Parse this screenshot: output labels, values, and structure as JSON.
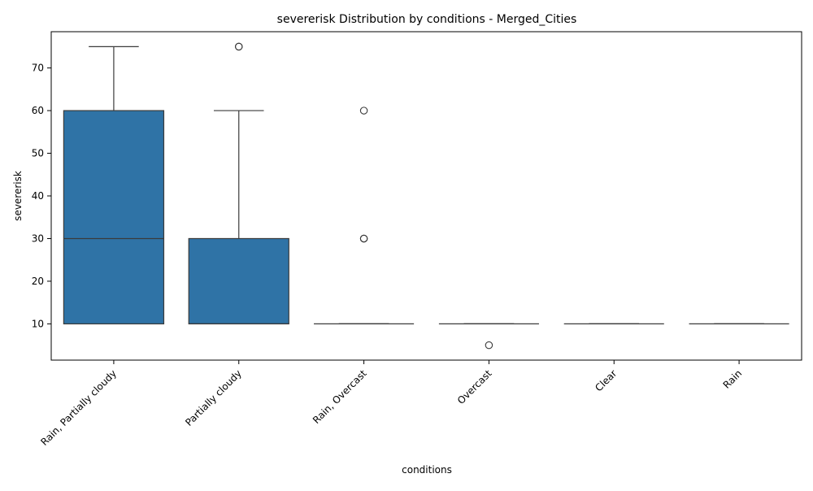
{
  "chart_data": {
    "type": "box",
    "title": "severerisk Distribution by conditions - Merged_Cities",
    "xlabel": "conditions",
    "ylabel": "severerisk",
    "ylim": [
      1.5,
      78.5
    ],
    "yticks": [
      10,
      20,
      30,
      40,
      50,
      60,
      70
    ],
    "grid": false,
    "box_color": "#2f73a6",
    "categories": [
      "Rain, Partially cloudy",
      "Partially cloudy",
      "Rain, Overcast",
      "Overcast",
      "Clear",
      "Rain"
    ],
    "boxes": [
      {
        "category": "Rain, Partially cloudy",
        "whisker_low": 10,
        "q1": 10,
        "median": 30,
        "q3": 60,
        "whisker_high": 75,
        "outliers": []
      },
      {
        "category": "Partially cloudy",
        "whisker_low": 10,
        "q1": 10,
        "median": 10,
        "q3": 30,
        "whisker_high": 60,
        "outliers": [
          75,
          75
        ]
      },
      {
        "category": "Rain, Overcast",
        "whisker_low": 10,
        "q1": 10,
        "median": 10,
        "q3": 10,
        "whisker_high": 10,
        "outliers": [
          30,
          30,
          60
        ]
      },
      {
        "category": "Overcast",
        "whisker_low": 10,
        "q1": 10,
        "median": 10,
        "q3": 10,
        "whisker_high": 10,
        "outliers": [
          5
        ]
      },
      {
        "category": "Clear",
        "whisker_low": 10,
        "q1": 10,
        "median": 10,
        "q3": 10,
        "whisker_high": 10,
        "outliers": []
      },
      {
        "category": "Rain",
        "whisker_low": 10,
        "q1": 10,
        "median": 10,
        "q3": 10,
        "whisker_high": 10,
        "outliers": []
      }
    ]
  }
}
